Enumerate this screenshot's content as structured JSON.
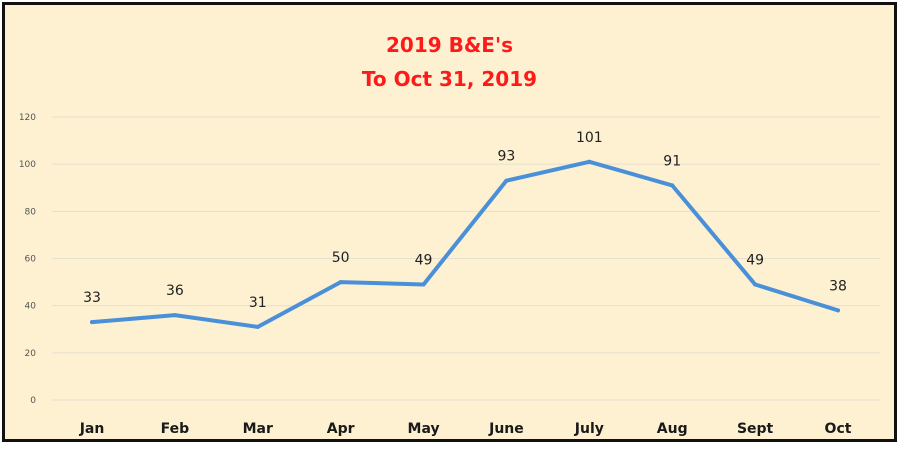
{
  "chart_data": {
    "type": "line",
    "title_line1": "2019 B&E's",
    "title_line2": "To Oct 31, 2019",
    "xlabel": "",
    "ylabel": "",
    "categories": [
      "Jan",
      "Feb",
      "Mar",
      "Apr",
      "May",
      "June",
      "July",
      "Aug",
      "Sept",
      "Oct"
    ],
    "values": [
      33,
      36,
      31,
      50,
      49,
      93,
      101,
      91,
      49,
      38
    ],
    "ylim": [
      0,
      120
    ],
    "yticks": [
      0,
      20,
      40,
      60,
      80,
      100,
      120
    ],
    "grid": true,
    "legend": "none",
    "line_color": "#4a90d9",
    "title_color": "#ff1a1a",
    "background_color": "#fdf1d2",
    "grid_color": "#e6e0d0"
  }
}
